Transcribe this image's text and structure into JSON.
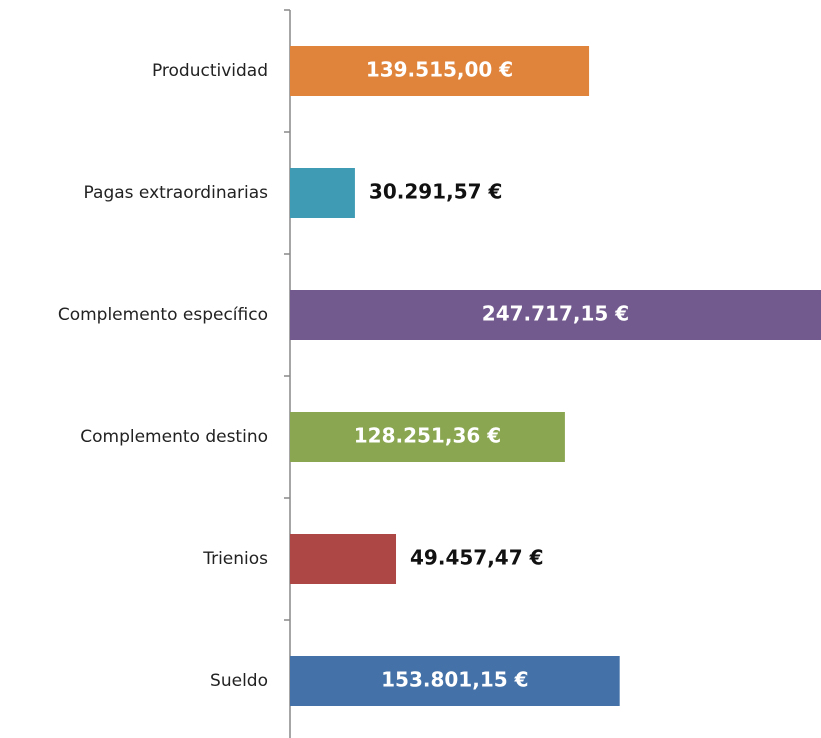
{
  "chart_data": {
    "type": "barh",
    "categories": [
      "Productividad",
      "Pagas extraordinarias",
      "Complemento específico",
      "Complemento destino",
      "Trienios",
      "Sueldo"
    ],
    "series": [
      {
        "name": null,
        "values": [
          139515.0,
          30291.57,
          247717.15,
          128251.36,
          49457.47,
          153801.15
        ],
        "value_labels": [
          "139.515,00 €",
          "30.291,57 €",
          "247.717,15 €",
          "128.251,36 €",
          "49.457,47 €",
          "153.801,15 €"
        ],
        "colors": [
          "#e0843c",
          "#3f9bb3",
          "#725a8f",
          "#8aa650",
          "#ad4746",
          "#4472a8"
        ]
      }
    ]
  }
}
